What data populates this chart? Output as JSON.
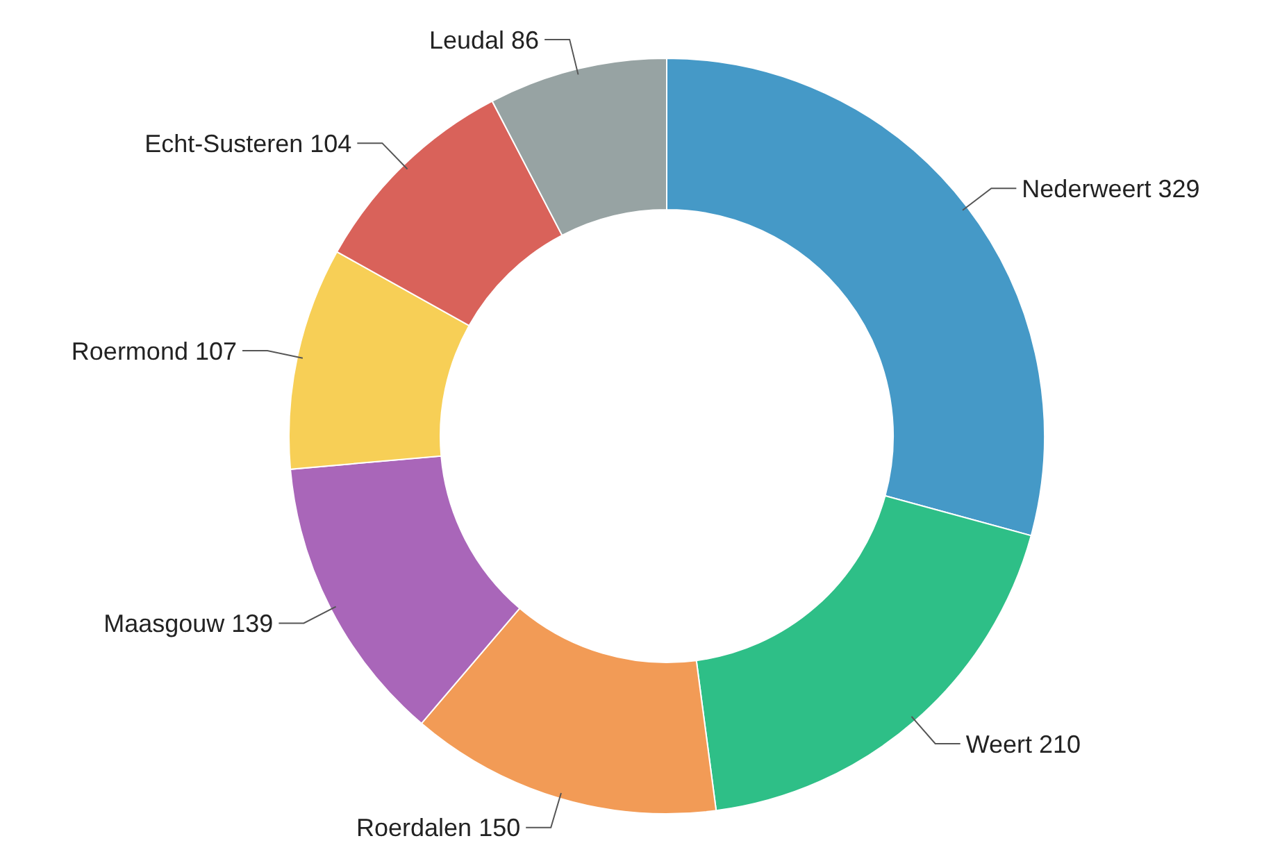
{
  "chart_data": {
    "type": "donut",
    "categories": [
      "Nederweert",
      "Weert",
      "Roerdalen",
      "Maasgouw",
      "Roermond",
      "Echt-Susteren",
      "Leudal"
    ],
    "values": [
      329,
      210,
      150,
      139,
      107,
      104,
      86
    ],
    "colors": [
      "#4599c7",
      "#2ebf87",
      "#f29b56",
      "#a966b9",
      "#f7cf56",
      "#d9625a",
      "#97a3a3"
    ],
    "data_labels": true
  }
}
